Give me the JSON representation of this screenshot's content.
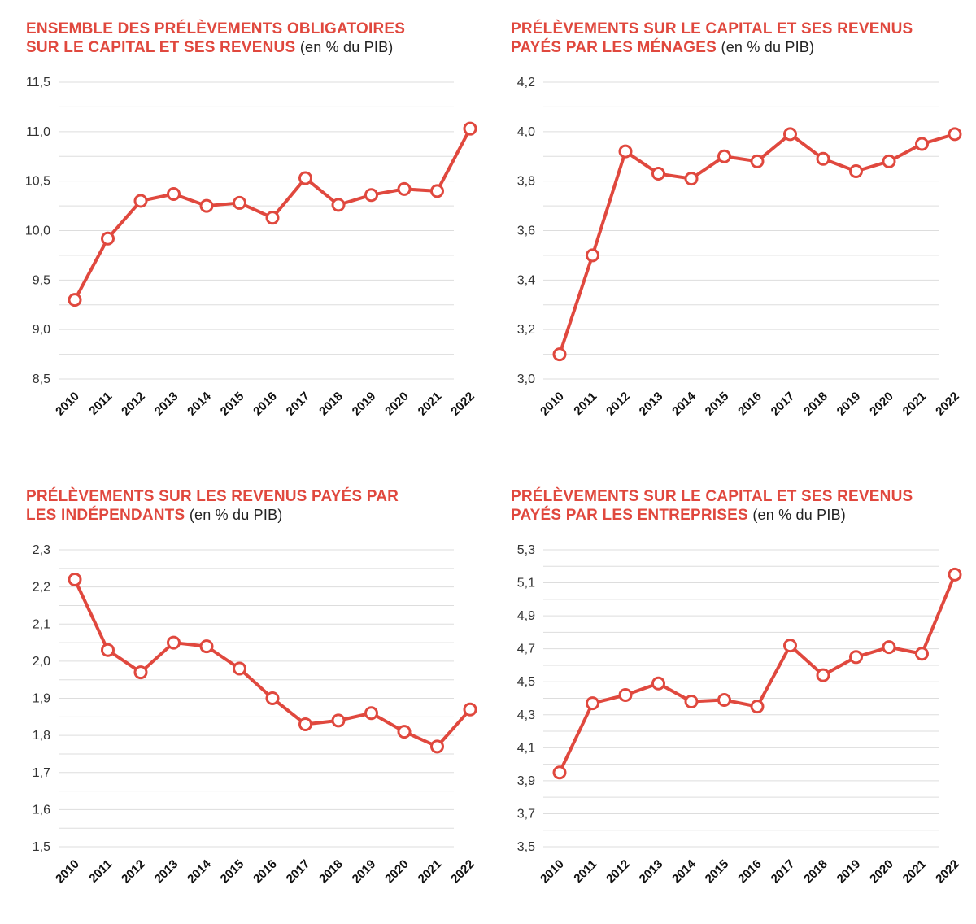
{
  "colors": {
    "accent": "#e0483e",
    "grid": "#dddddd",
    "text": "#333333"
  },
  "chart_data": [
    {
      "type": "line",
      "title_line1": "ENSEMBLE DES PRÉLÈVEMENTS OBLIGATOIRES",
      "title_line2": "SUR LE CAPITAL ET SES REVENUS",
      "unit": "(en % du PIB)",
      "x": [
        "2010",
        "2011",
        "2012",
        "2013",
        "2014",
        "2015",
        "2016",
        "2017",
        "2018",
        "2019",
        "2020",
        "2021",
        "2022"
      ],
      "values": [
        9.3,
        9.92,
        10.3,
        10.37,
        10.25,
        10.28,
        10.13,
        10.53,
        10.26,
        10.36,
        10.42,
        10.4,
        11.03
      ],
      "ylim": [
        8.5,
        11.5
      ],
      "yticks": [
        "8,5",
        "9,0",
        "9,5",
        "10,0",
        "10,5",
        "11,0",
        "11,5"
      ],
      "ytick_values": [
        8.5,
        9.0,
        9.5,
        10.0,
        10.5,
        11.0,
        11.5
      ],
      "grid": true
    },
    {
      "type": "line",
      "title_line1": "PRÉLÈVEMENTS SUR LE CAPITAL ET SES REVENUS",
      "title_line2": "PAYÉS PAR LES MÉNAGES",
      "unit": "(en % du PIB)",
      "x": [
        "2010",
        "2011",
        "2012",
        "2013",
        "2014",
        "2015",
        "2016",
        "2017",
        "2018",
        "2019",
        "2020",
        "2021",
        "2022"
      ],
      "values": [
        3.1,
        3.5,
        3.92,
        3.83,
        3.81,
        3.9,
        3.88,
        3.99,
        3.89,
        3.84,
        3.88,
        3.95,
        3.99
      ],
      "ylim": [
        3.0,
        4.2
      ],
      "yticks": [
        "3,0",
        "3,2",
        "3,4",
        "3,6",
        "3,8",
        "4,0",
        "4,2"
      ],
      "ytick_values": [
        3.0,
        3.2,
        3.4,
        3.6,
        3.8,
        4.0,
        4.2
      ],
      "grid": true
    },
    {
      "type": "line",
      "title_line1": "PRÉLÈVEMENTS SUR LES REVENUS PAYÉS PAR",
      "title_line2": "LES INDÉPENDANTS",
      "unit": "(en % du PIB)",
      "x": [
        "2010",
        "2011",
        "2012",
        "2013",
        "2014",
        "2015",
        "2016",
        "2017",
        "2018",
        "2019",
        "2020",
        "2021",
        "2022"
      ],
      "values": [
        2.22,
        2.03,
        1.97,
        2.05,
        2.04,
        1.98,
        1.9,
        1.83,
        1.84,
        1.86,
        1.81,
        1.77,
        1.87
      ],
      "ylim": [
        1.5,
        2.3
      ],
      "yticks": [
        "1,5",
        "1,6",
        "1,7",
        "1,8",
        "1,9",
        "2,0",
        "2,1",
        "2,2",
        "2,3"
      ],
      "ytick_values": [
        1.5,
        1.6,
        1.7,
        1.8,
        1.9,
        2.0,
        2.1,
        2.2,
        2.3
      ],
      "grid": true
    },
    {
      "type": "line",
      "title_line1": "PRÉLÈVEMENTS SUR LE CAPITAL ET SES REVENUS",
      "title_line2": "PAYÉS PAR LES ENTREPRISES",
      "unit": "(en % du PIB)",
      "x": [
        "2010",
        "2011",
        "2012",
        "2013",
        "2014",
        "2015",
        "2016",
        "2017",
        "2018",
        "2019",
        "2020",
        "2021",
        "2022"
      ],
      "values": [
        3.95,
        4.37,
        4.42,
        4.49,
        4.38,
        4.39,
        4.35,
        4.72,
        4.54,
        4.65,
        4.71,
        4.67,
        5.15
      ],
      "ylim": [
        3.5,
        5.3
      ],
      "yticks": [
        "3,5",
        "3,7",
        "3,9",
        "4,1",
        "4,3",
        "4,5",
        "4,7",
        "4,9",
        "5,1",
        "5,3"
      ],
      "ytick_values": [
        3.5,
        3.7,
        3.9,
        4.1,
        4.3,
        4.5,
        4.7,
        4.9,
        5.1,
        5.3
      ],
      "grid": true
    }
  ]
}
